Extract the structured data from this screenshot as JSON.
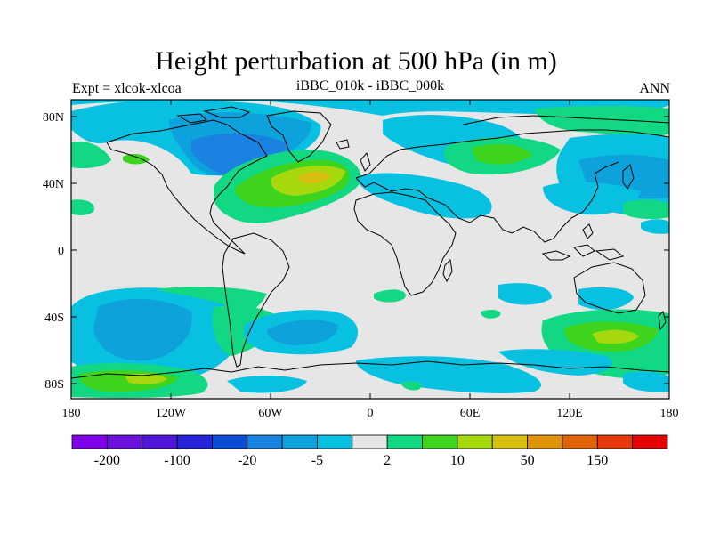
{
  "title": "Height perturbation at 500 hPa (in m)",
  "subtitle_left": "Expt = xlcok-xlcoa",
  "subtitle_center": "iBBC_010k - iBBC_000k",
  "subtitle_right": "ANN",
  "lat_ticks": [
    "80N",
    "40N",
    "0",
    "40S",
    "80S"
  ],
  "lon_ticks": [
    "180",
    "120W",
    "60W",
    "0",
    "60E",
    "120E",
    "180"
  ],
  "colorbar": {
    "colors": [
      "#8000e8",
      "#6a12dc",
      "#5016d8",
      "#2626d8",
      "#0a4ed6",
      "#1a82e0",
      "#0ea2dc",
      "#08c0e0",
      "#e6e6e6",
      "#12d884",
      "#3ed41e",
      "#a6d80e",
      "#d8c010",
      "#de9406",
      "#e06406",
      "#e6380c",
      "#e40404"
    ],
    "labels": [
      "-200",
      "-100",
      "-20",
      "-5",
      "2",
      "10",
      "50",
      "150"
    ]
  },
  "map": {
    "background_color": "#e6e6e6",
    "projection": "cylindrical equidistant, 180W–180E, 90S–90N"
  }
}
